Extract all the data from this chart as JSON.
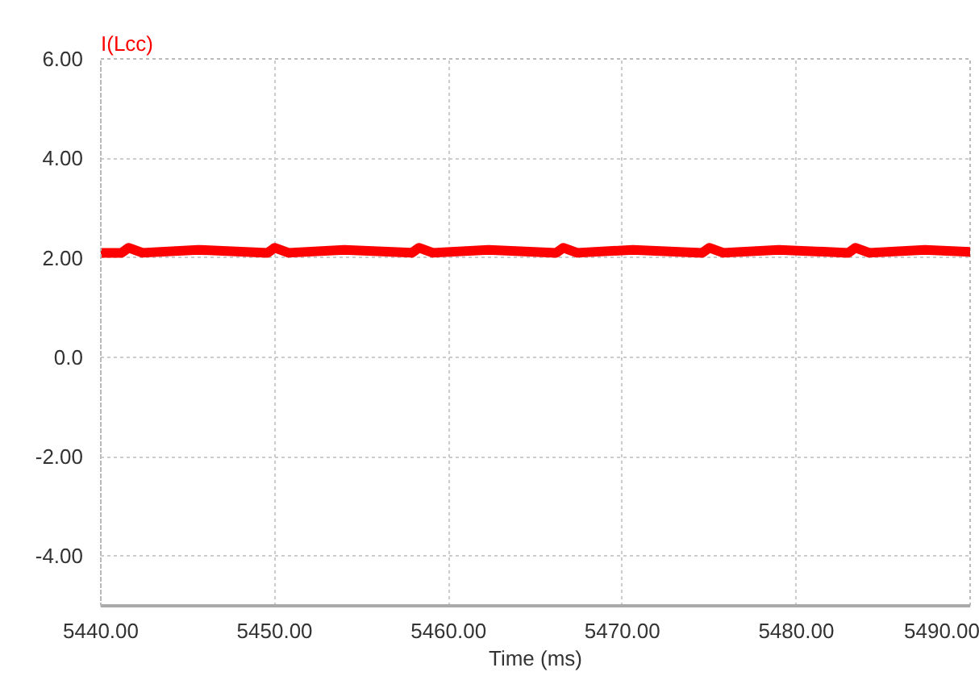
{
  "chart_data": {
    "type": "line",
    "xlabel": "Time (ms)",
    "xlim": [
      5440,
      5490
    ],
    "ylim": [
      -5,
      6
    ],
    "xticks": [
      {
        "value": 5440,
        "label": "5440.00"
      },
      {
        "value": 5450,
        "label": "5450.00"
      },
      {
        "value": 5460,
        "label": "5460.00"
      },
      {
        "value": 5470,
        "label": "5470.00"
      },
      {
        "value": 5480,
        "label": "5480.00"
      },
      {
        "value": 5490,
        "label": "5490.00"
      }
    ],
    "yticks": [
      {
        "value": -4,
        "label": "-4.00"
      },
      {
        "value": -2,
        "label": "-2.00"
      },
      {
        "value": 0,
        "label": "0.0"
      },
      {
        "value": 2,
        "label": "2.00"
      },
      {
        "value": 4,
        "label": "4.00"
      },
      {
        "value": 6,
        "label": "6.00"
      }
    ],
    "grid": true,
    "marker": "none",
    "line_style": "solid",
    "series": [
      {
        "name": "I(Lcc)",
        "color": "#ff0000",
        "x": [
          5440.0,
          5441.2,
          5441.6,
          5442.4,
          5445.6,
          5449.6,
          5450.0,
          5450.8,
          5454.0,
          5457.9,
          5458.3,
          5459.1,
          5462.3,
          5466.2,
          5466.6,
          5467.4,
          5470.6,
          5474.6,
          5475.0,
          5475.8,
          5479.0,
          5483.0,
          5483.4,
          5484.2,
          5487.4,
          5490.0
        ],
        "values": [
          2.1,
          2.1,
          2.2,
          2.1,
          2.16,
          2.1,
          2.2,
          2.1,
          2.16,
          2.1,
          2.2,
          2.1,
          2.16,
          2.1,
          2.2,
          2.1,
          2.16,
          2.1,
          2.2,
          2.1,
          2.16,
          2.1,
          2.2,
          2.1,
          2.16,
          2.12
        ]
      }
    ]
  }
}
